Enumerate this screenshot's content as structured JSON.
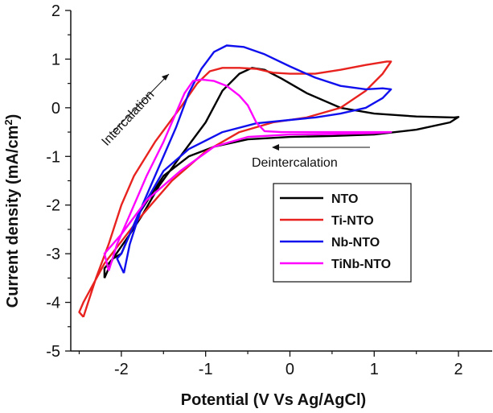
{
  "chart_data": {
    "type": "line",
    "xlabel": "Potential (V Vs Ag/AgCl)",
    "ylabel": "Current density (mA/cm",
    "ylabel_sup": "2",
    "ylabel_end": ")",
    "xlim": [
      -2.6,
      2.4
    ],
    "ylim": [
      -5,
      2
    ],
    "xticks": [
      -2,
      -1,
      0,
      1,
      2
    ],
    "yticks": [
      -5,
      -4,
      -3,
      -2,
      -1,
      0,
      1,
      2
    ],
    "xtick_labels": [
      "-2",
      "-1",
      "0",
      "1",
      "2"
    ],
    "ytick_labels": [
      "-5",
      "-4",
      "-3",
      "-2",
      "-1",
      "0",
      "1",
      "2"
    ],
    "legend_position": "lower-right",
    "annotations": {
      "intercalation": "Intercalation",
      "deintercalation": "Deintercalation"
    },
    "series": [
      {
        "name": "NTO",
        "color": "#000000",
        "points": [
          [
            -2.2,
            -3.5
          ],
          [
            -2.1,
            -3.1
          ],
          [
            -1.9,
            -2.6
          ],
          [
            -1.75,
            -2.2
          ],
          [
            -1.55,
            -1.6
          ],
          [
            -1.3,
            -1.0
          ],
          [
            -1.0,
            -0.3
          ],
          [
            -0.8,
            0.35
          ],
          [
            -0.6,
            0.7
          ],
          [
            -0.45,
            0.82
          ],
          [
            -0.3,
            0.78
          ],
          [
            -0.1,
            0.6
          ],
          [
            0.2,
            0.3
          ],
          [
            0.6,
            0.0
          ],
          [
            1.0,
            -0.12
          ],
          [
            1.5,
            -0.18
          ],
          [
            1.95,
            -0.2
          ],
          [
            2.0,
            -0.19
          ],
          [
            1.9,
            -0.3
          ],
          [
            1.5,
            -0.45
          ],
          [
            1.0,
            -0.55
          ],
          [
            0.5,
            -0.58
          ],
          [
            0.0,
            -0.6
          ],
          [
            -0.5,
            -0.65
          ],
          [
            -0.9,
            -0.8
          ],
          [
            -1.2,
            -1.0
          ],
          [
            -1.5,
            -1.4
          ],
          [
            -1.8,
            -2.2
          ],
          [
            -2.0,
            -3.0
          ],
          [
            -2.1,
            -3.1
          ],
          [
            -2.2,
            -3.3
          ],
          [
            -2.2,
            -3.5
          ]
        ]
      },
      {
        "name": "Ti-NTO",
        "color": "#e8231f",
        "points": [
          [
            -2.45,
            -4.3
          ],
          [
            -2.3,
            -3.5
          ],
          [
            -2.15,
            -2.8
          ],
          [
            -2.0,
            -2.0
          ],
          [
            -1.85,
            -1.4
          ],
          [
            -1.6,
            -0.7
          ],
          [
            -1.3,
            0.0
          ],
          [
            -1.1,
            0.5
          ],
          [
            -0.95,
            0.75
          ],
          [
            -0.8,
            0.82
          ],
          [
            -0.6,
            0.82
          ],
          [
            -0.4,
            0.8
          ],
          [
            -0.2,
            0.72
          ],
          [
            0.0,
            0.7
          ],
          [
            0.3,
            0.7
          ],
          [
            0.6,
            0.78
          ],
          [
            0.9,
            0.88
          ],
          [
            1.15,
            0.95
          ],
          [
            1.2,
            0.95
          ],
          [
            1.1,
            0.7
          ],
          [
            0.9,
            0.35
          ],
          [
            0.6,
            0.0
          ],
          [
            0.2,
            -0.2
          ],
          [
            -0.2,
            -0.3
          ],
          [
            -0.6,
            -0.5
          ],
          [
            -1.0,
            -0.9
          ],
          [
            -1.4,
            -1.5
          ],
          [
            -1.8,
            -2.3
          ],
          [
            -2.2,
            -3.2
          ],
          [
            -2.45,
            -4.0
          ],
          [
            -2.5,
            -4.2
          ],
          [
            -2.45,
            -4.3
          ]
        ]
      },
      {
        "name": "Nb-NTO",
        "color": "#1010ee",
        "points": [
          [
            -1.97,
            -3.4
          ],
          [
            -1.9,
            -2.8
          ],
          [
            -1.75,
            -2.0
          ],
          [
            -1.55,
            -1.2
          ],
          [
            -1.35,
            -0.4
          ],
          [
            -1.2,
            0.3
          ],
          [
            -1.05,
            0.8
          ],
          [
            -0.9,
            1.15
          ],
          [
            -0.75,
            1.28
          ],
          [
            -0.55,
            1.25
          ],
          [
            -0.3,
            1.1
          ],
          [
            0.0,
            0.85
          ],
          [
            0.3,
            0.62
          ],
          [
            0.6,
            0.45
          ],
          [
            0.9,
            0.38
          ],
          [
            1.1,
            0.4
          ],
          [
            1.2,
            0.38
          ],
          [
            1.1,
            0.2
          ],
          [
            0.9,
            0.0
          ],
          [
            0.6,
            -0.12
          ],
          [
            0.3,
            -0.2
          ],
          [
            0.0,
            -0.25
          ],
          [
            -0.4,
            -0.32
          ],
          [
            -0.8,
            -0.5
          ],
          [
            -1.2,
            -0.85
          ],
          [
            -1.5,
            -1.3
          ],
          [
            -1.8,
            -2.2
          ],
          [
            -2.0,
            -3.0
          ],
          [
            -2.05,
            -3.1
          ],
          [
            -1.97,
            -3.4
          ]
        ]
      },
      {
        "name": "TiNb-NTO",
        "color": "#ff00ff",
        "points": [
          [
            -2.15,
            -3.35
          ],
          [
            -2.05,
            -2.8
          ],
          [
            -1.9,
            -2.2
          ],
          [
            -1.7,
            -1.4
          ],
          [
            -1.5,
            -0.7
          ],
          [
            -1.35,
            -0.1
          ],
          [
            -1.25,
            0.3
          ],
          [
            -1.15,
            0.55
          ],
          [
            -1.05,
            0.58
          ],
          [
            -0.9,
            0.55
          ],
          [
            -0.75,
            0.45
          ],
          [
            -0.6,
            0.25
          ],
          [
            -0.5,
            0.05
          ],
          [
            -0.4,
            -0.3
          ],
          [
            -0.3,
            -0.48
          ],
          [
            -0.1,
            -0.5
          ],
          [
            0.2,
            -0.5
          ],
          [
            0.6,
            -0.5
          ],
          [
            1.0,
            -0.5
          ],
          [
            1.2,
            -0.5
          ],
          [
            1.0,
            -0.52
          ],
          [
            0.5,
            -0.54
          ],
          [
            0.0,
            -0.55
          ],
          [
            -0.5,
            -0.6
          ],
          [
            -0.9,
            -0.8
          ],
          [
            -1.3,
            -1.3
          ],
          [
            -1.7,
            -1.9
          ],
          [
            -2.0,
            -2.6
          ],
          [
            -2.2,
            -3.0
          ],
          [
            -2.15,
            -3.35
          ]
        ]
      }
    ]
  }
}
